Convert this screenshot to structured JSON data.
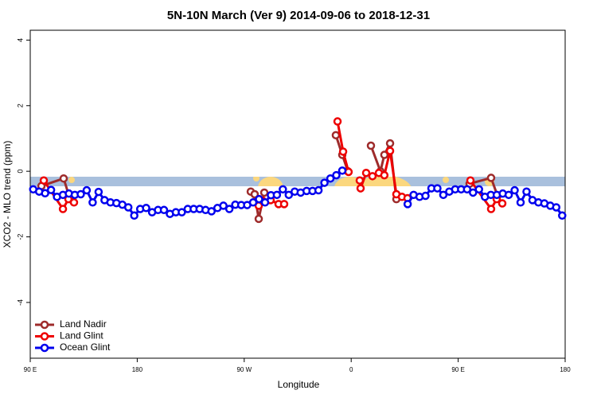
{
  "chart_data": {
    "type": "line",
    "title": "5N-10N March (Ver 9)   2014-09-06 to 2018-12-31",
    "x_label": "Longitude",
    "y_label": "XCO2 - MLO trend (ppm)",
    "xlim": [
      90,
      540
    ],
    "ylim": [
      -5.7,
      4.3
    ],
    "xticks": [
      {
        "value": 90,
        "label": "90 E"
      },
      180,
      {
        "value": 270,
        "label": "90 W"
      },
      {
        "value": 360,
        "label": "0"
      },
      {
        "value": 450,
        "label": "90 E"
      },
      {
        "value": 540,
        "label": "180"
      }
    ],
    "yticks": [
      -4,
      -2,
      0,
      2,
      4
    ],
    "legend": "bottom-left",
    "series": [
      {
        "name": "Land Nadir",
        "color": "#9e2b2b",
        "x": [
          99.4,
          118.1,
          123.5,
          null,
          275.5,
          278.8,
          282.2,
          286.9,
          null,
          347.1,
          352.5,
          357.2,
          null,
          376.6,
          384.6,
          387.9,
          392.7,
          398.0,
          null,
          459.6,
          477.7,
          483.1
        ],
        "values": [
          -0.45,
          -0.22,
          -0.85,
          null,
          -0.62,
          -0.7,
          -1.45,
          -0.65,
          null,
          1.1,
          0.5,
          0.0,
          null,
          0.78,
          0.0,
          0.5,
          0.85,
          -0.85,
          null,
          -0.38,
          -0.2,
          -0.75
        ]
      },
      {
        "name": "Land Glint",
        "color": "#ee0000",
        "x": [
          101.4,
          117.5,
          122.1,
          126.8,
          null,
          282.2,
          285.5,
          292.2,
          298.9,
          303.6,
          null,
          348.5,
          353.2,
          357.8,
          null,
          367.2,
          367.9,
          372.6,
          377.9,
          383.3,
          387.9,
          392.7,
          398.0,
          402.7,
          407.4,
          null,
          460.3,
          477.7,
          482.4,
          487.1
        ],
        "values": [
          -0.28,
          -1.15,
          -0.85,
          -0.95,
          null,
          -1.05,
          -0.9,
          -0.88,
          -1.0,
          -1.0,
          null,
          1.52,
          0.6,
          -0.02,
          null,
          -0.28,
          -0.52,
          -0.05,
          -0.15,
          -0.05,
          -0.12,
          0.62,
          -0.7,
          -0.78,
          -0.82,
          null,
          -0.28,
          -1.15,
          -0.85,
          -0.98
        ]
      },
      {
        "name": "Ocean Glint",
        "color": "#0000ee",
        "x": [
          92.5,
          97.5,
          102.5,
          107.5,
          112.5,
          117.5,
          122.5,
          127.5,
          132.5,
          137.5,
          142.5,
          147.5,
          152.5,
          157.5,
          162.5,
          167.5,
          172.5,
          177.5,
          182.5,
          187.5,
          192.5,
          197.5,
          202.5,
          207.5,
          212.5,
          217.5,
          222.5,
          227.5,
          232.5,
          237.5,
          242.5,
          247.5,
          252.5,
          257.5,
          262.5,
          267.5,
          272.5,
          277.5,
          282.5,
          287.5,
          292.5,
          297.5,
          302.5,
          307.5,
          312.5,
          317.5,
          322.5,
          327.5,
          332.5,
          337.5,
          342.5,
          347.5,
          352.5,
          null,
          407.5,
          412.5,
          417.5,
          422.5,
          427.5,
          432.5,
          437.5,
          442.5,
          447.5,
          452.5,
          457.5,
          462.5,
          467.5,
          472.5,
          477.5,
          482.5,
          487.5,
          492.5,
          497.5,
          502.5,
          507.5,
          512.5,
          517.5,
          522.5,
          527.5,
          532.5,
          537.5
        ],
        "values": [
          -0.55,
          -0.62,
          -0.67,
          -0.57,
          -0.78,
          -0.72,
          -0.68,
          -0.72,
          -0.7,
          -0.58,
          -0.95,
          -0.63,
          -0.88,
          -0.95,
          -0.97,
          -1.02,
          -1.1,
          -1.35,
          -1.15,
          -1.12,
          -1.25,
          -1.18,
          -1.18,
          -1.3,
          -1.25,
          -1.25,
          -1.15,
          -1.15,
          -1.15,
          -1.18,
          -1.22,
          -1.12,
          -1.05,
          -1.15,
          -1.02,
          -1.03,
          -1.03,
          -0.95,
          -0.85,
          -0.95,
          -0.73,
          -0.72,
          -0.55,
          -0.72,
          -0.62,
          -0.65,
          -0.6,
          -0.6,
          -0.58,
          -0.35,
          -0.22,
          -0.12,
          0.02,
          null,
          -1.0,
          -0.72,
          -0.78,
          -0.75,
          -0.52,
          -0.52,
          -0.72,
          -0.62,
          -0.55,
          -0.55,
          -0.55,
          -0.65,
          -0.55,
          -0.78,
          -0.72,
          -0.72,
          -0.68,
          -0.72,
          -0.58,
          -0.95,
          -0.62,
          -0.88,
          -0.95,
          -0.98,
          -1.05,
          -1.1,
          -1.35
        ]
      }
    ]
  }
}
